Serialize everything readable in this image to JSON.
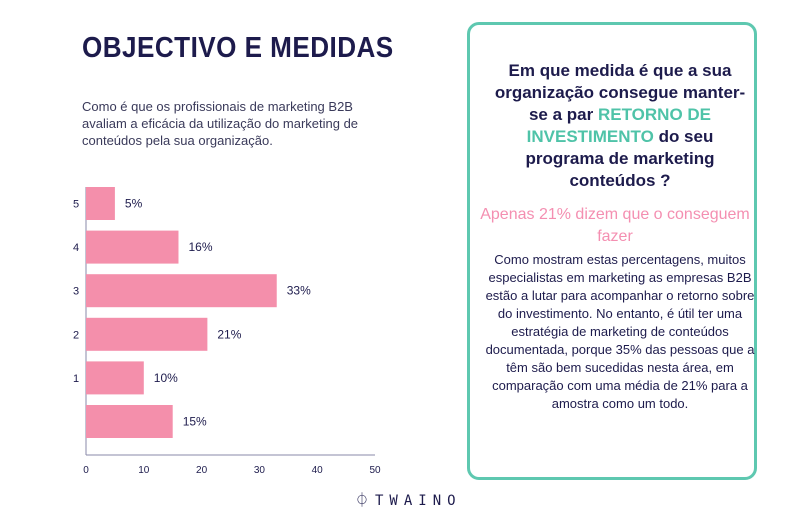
{
  "title": "OBJECTIVO E MEDIDAS",
  "subtitle": "Como é que os profissionais de marketing B2B avaliam a eficácia da utilização do marketing de conteúdos pela sua organização.",
  "chart_data": {
    "type": "bar",
    "orientation": "horizontal",
    "categories": [
      "5",
      "4",
      "3",
      "2",
      "1",
      ""
    ],
    "values": [
      5,
      16,
      33,
      21,
      10,
      15
    ],
    "data_labels": [
      "5%",
      "16%",
      "33%",
      "21%",
      "10%",
      "15%"
    ],
    "xlim": [
      0,
      50
    ],
    "xticks": [
      "0",
      "10",
      "20",
      "30",
      "40",
      "50"
    ],
    "grid": false,
    "bar_color": "#f48fab",
    "label_color": "#1d1b4c"
  },
  "card": {
    "question_pre": "Em que medida é que a sua organização consegue manter-se a par ",
    "question_highlight": "RETORNO DE INVESTIMENTO",
    "question_post": " do seu programa de marketing conteúdos ?",
    "highlight_text": "Apenas 21% dizem que o conseguem fazer",
    "body": "Como mostram estas percentagens, muitos especialistas em marketing as empresas B2B estão a lutar para acompanhar o retorno sobre do investimento. No entanto, é útil ter uma estratégia de marketing de conteúdos documentada, porque 35% das pessoas que a têm são bem sucedidas nesta área, em comparação com uma média de 21% para a amostra como um todo.",
    "border_color": "#5ec8b0"
  },
  "logo": "TWAINO"
}
